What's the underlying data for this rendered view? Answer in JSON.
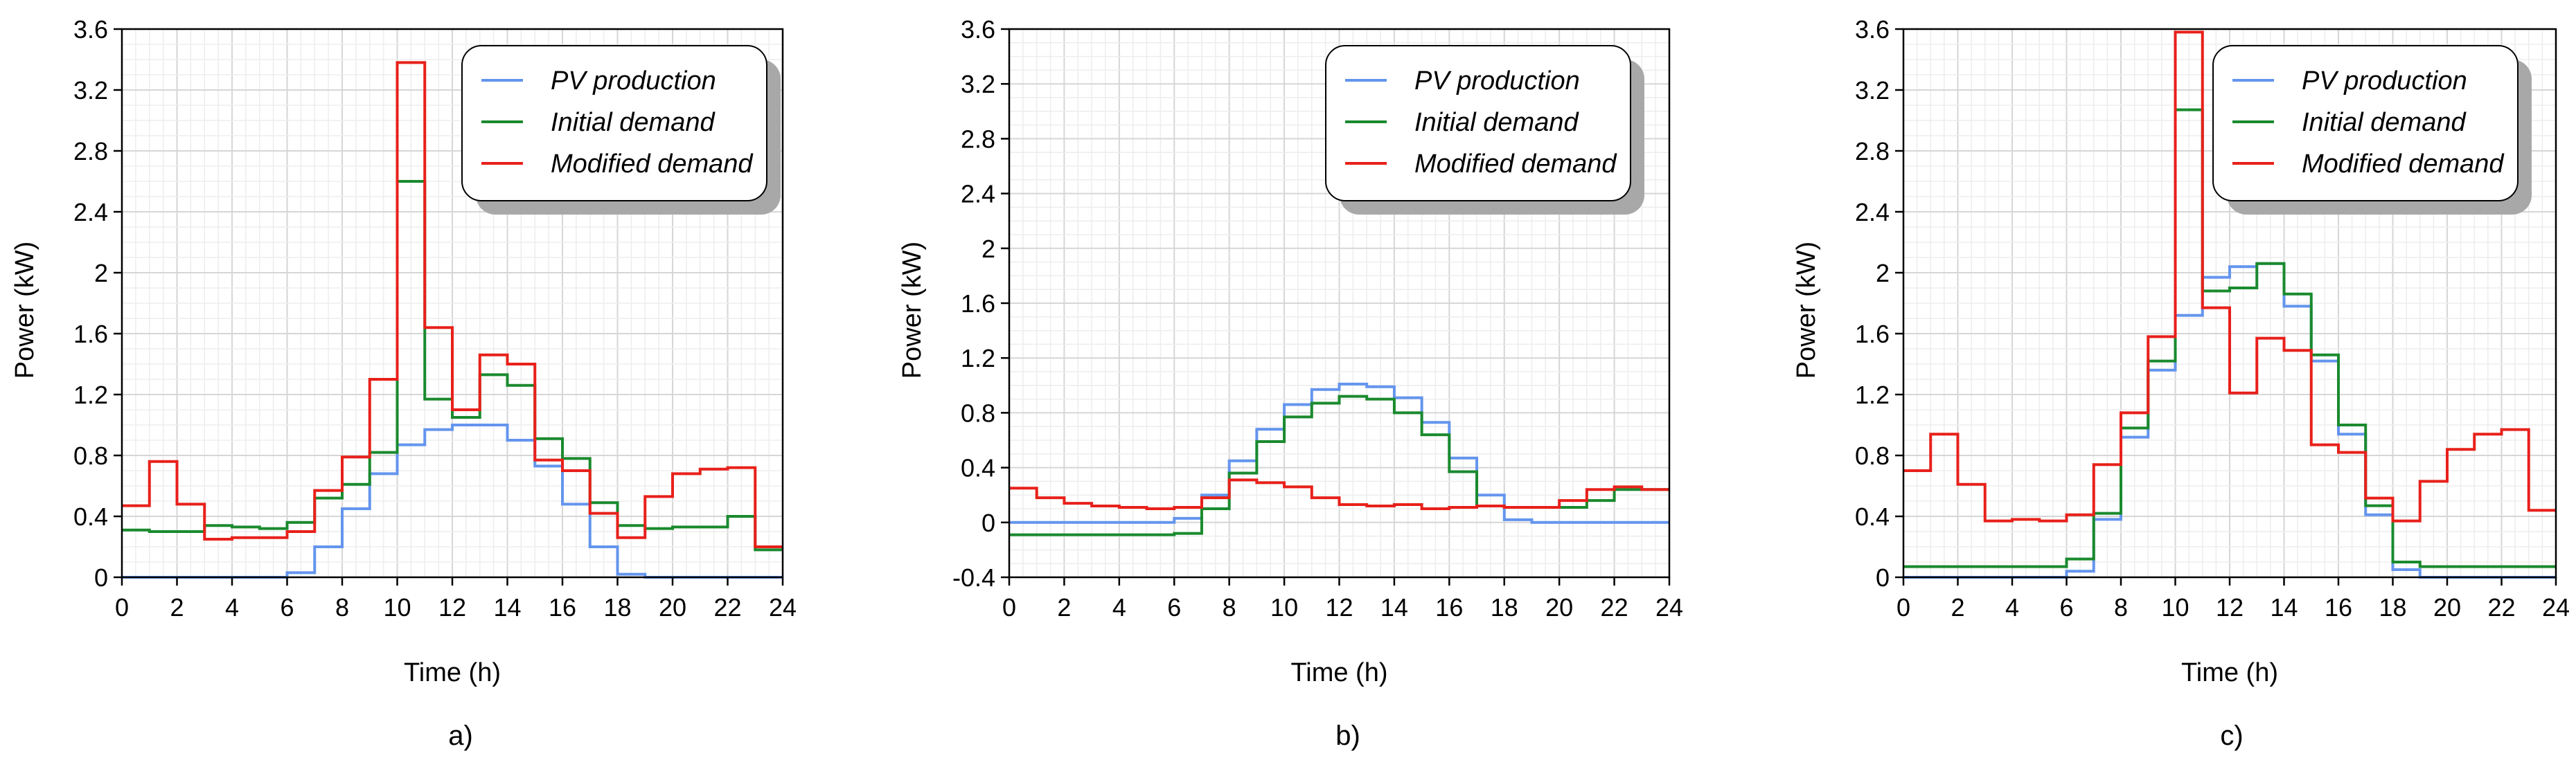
{
  "legend": {
    "pv_label": "PV production",
    "initial_label": "Initial demand",
    "modified_label": "Modified demand"
  },
  "colors": {
    "pv": "#6495ED",
    "initial": "#1A8A2E",
    "modified": "#E8201A",
    "grid_major": "#D6D6D6",
    "grid_minor": "#EDEDED"
  },
  "chart_data": [
    {
      "type": "line",
      "step": true,
      "panel_label": "a)",
      "xlabel": "Time (h)",
      "ylabel": "Power (kW)",
      "xlim": [
        0,
        24
      ],
      "ylim": [
        0,
        3.6
      ],
      "xticks": [
        "0",
        "2",
        "4",
        "6",
        "8",
        "10",
        "12",
        "14",
        "16",
        "18",
        "20",
        "22",
        "24"
      ],
      "yticks": [
        "0",
        "0.4",
        "0.8",
        "1.2",
        "1.6",
        "2",
        "2.4",
        "2.8",
        "3.2",
        "3.6"
      ],
      "grid": true,
      "legend_position": "top-right",
      "series": [
        {
          "name": "PV production",
          "values": [
            0,
            0,
            0,
            0,
            0,
            0,
            0.03,
            0.2,
            0.45,
            0.68,
            0.87,
            0.97,
            1.0,
            1.0,
            0.9,
            0.73,
            0.48,
            0.2,
            0.02,
            0,
            0,
            0,
            0,
            0
          ]
        },
        {
          "name": "Initial demand",
          "values": [
            0.31,
            0.3,
            0.3,
            0.34,
            0.33,
            0.32,
            0.36,
            0.52,
            0.61,
            0.82,
            2.6,
            1.17,
            1.05,
            1.33,
            1.26,
            0.91,
            0.78,
            0.49,
            0.34,
            0.32,
            0.33,
            0.33,
            0.4,
            0.18
          ]
        },
        {
          "name": "Modified demand",
          "values": [
            0.47,
            0.76,
            0.48,
            0.25,
            0.26,
            0.26,
            0.3,
            0.57,
            0.79,
            1.3,
            3.38,
            1.64,
            1.1,
            1.46,
            1.4,
            0.77,
            0.7,
            0.42,
            0.26,
            0.53,
            0.68,
            0.71,
            0.72,
            0.2
          ]
        }
      ]
    },
    {
      "type": "line",
      "step": true,
      "panel_label": "b)",
      "xlabel": "Time (h)",
      "ylabel": "Power (kW)",
      "xlim": [
        0,
        24
      ],
      "ylim": [
        -0.4,
        3.6
      ],
      "xticks": [
        "0",
        "2",
        "4",
        "6",
        "8",
        "10",
        "12",
        "14",
        "16",
        "18",
        "20",
        "22",
        "24"
      ],
      "yticks": [
        "-0.4",
        "0",
        "0.4",
        "0.8",
        "1.2",
        "1.6",
        "2",
        "2.4",
        "2.8",
        "3.2",
        "3.6"
      ],
      "grid": true,
      "legend_position": "top-right",
      "series": [
        {
          "name": "PV production",
          "values": [
            0,
            0,
            0,
            0,
            0,
            0,
            0.03,
            0.2,
            0.45,
            0.68,
            0.86,
            0.97,
            1.01,
            0.99,
            0.91,
            0.73,
            0.47,
            0.2,
            0.02,
            0,
            0,
            0,
            0,
            0
          ]
        },
        {
          "name": "Initial demand",
          "values": [
            -0.09,
            -0.09,
            -0.09,
            -0.09,
            -0.09,
            -0.09,
            -0.08,
            0.1,
            0.36,
            0.59,
            0.77,
            0.87,
            0.92,
            0.9,
            0.8,
            0.64,
            0.37,
            0.12,
            0.11,
            0.11,
            0.11,
            0.16,
            0.24,
            0.24
          ]
        },
        {
          "name": "Modified demand",
          "values": [
            0.25,
            0.18,
            0.14,
            0.12,
            0.11,
            0.1,
            0.11,
            0.18,
            0.31,
            0.29,
            0.26,
            0.18,
            0.13,
            0.12,
            0.13,
            0.1,
            0.11,
            0.12,
            0.11,
            0.11,
            0.16,
            0.24,
            0.26,
            0.24
          ]
        }
      ]
    },
    {
      "type": "line",
      "step": true,
      "panel_label": "c)",
      "xlabel": "Time (h)",
      "ylabel": "Power (kW)",
      "xlim": [
        0,
        24
      ],
      "ylim": [
        0,
        3.6
      ],
      "xticks": [
        "0",
        "2",
        "4",
        "6",
        "8",
        "10",
        "12",
        "14",
        "16",
        "18",
        "20",
        "22",
        "24"
      ],
      "yticks": [
        "0",
        "0.4",
        "0.8",
        "1.2",
        "1.6",
        "2",
        "2.4",
        "2.8",
        "3.2",
        "3.6"
      ],
      "grid": true,
      "legend_position": "top-right",
      "series": [
        {
          "name": "PV production",
          "values": [
            0,
            0,
            0,
            0,
            0,
            0,
            0.04,
            0.38,
            0.92,
            1.36,
            1.72,
            1.97,
            2.04,
            2.06,
            1.78,
            1.42,
            0.94,
            0.41,
            0.05,
            0,
            0,
            0,
            0,
            0
          ]
        },
        {
          "name": "Initial demand",
          "values": [
            0.07,
            0.07,
            0.07,
            0.07,
            0.07,
            0.07,
            0.12,
            0.42,
            0.98,
            1.42,
            3.07,
            1.88,
            1.9,
            2.06,
            1.86,
            1.46,
            1.0,
            0.47,
            0.1,
            0.07,
            0.07,
            0.07,
            0.07,
            0.07
          ]
        },
        {
          "name": "Modified demand",
          "values": [
            0.7,
            0.94,
            0.61,
            0.37,
            0.38,
            0.37,
            0.41,
            0.74,
            1.08,
            1.58,
            3.58,
            1.77,
            1.21,
            1.57,
            1.49,
            0.87,
            0.82,
            0.52,
            0.37,
            0.63,
            0.84,
            0.94,
            0.97,
            0.44
          ]
        }
      ]
    }
  ]
}
